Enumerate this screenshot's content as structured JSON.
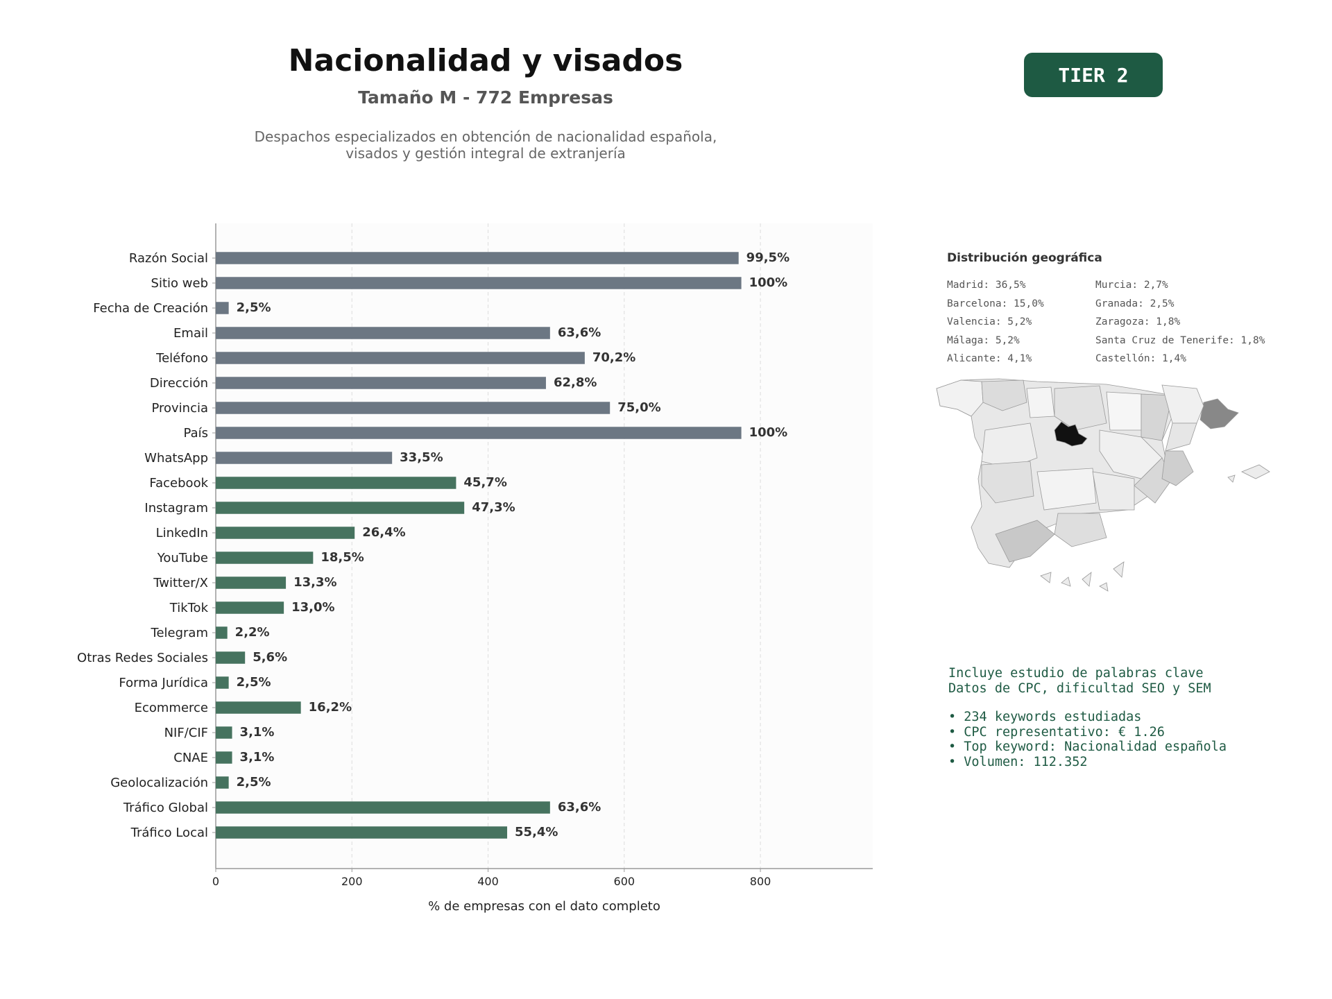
{
  "header": {
    "title": "Nacionalidad y visados",
    "subtitle": "Tamaño M - 772 Empresas",
    "description_line1": "Despachos especializados en obtención de nacionalidad española,",
    "description_line2": "visados y gestión integral de extranjería",
    "tier": "TIER 2"
  },
  "colors": {
    "gray_bar": "#6c7783",
    "green_bar": "#46735f",
    "tier_bg": "#1e5a43",
    "map_highlight": "#111111"
  },
  "chart_data": {
    "type": "bar",
    "orientation": "horizontal",
    "xlabel": "% de empresas con el dato completo",
    "xlim": [
      0,
      965
    ],
    "xticks": [
      0,
      200,
      400,
      600,
      800
    ],
    "grid": "vertical dashed",
    "categories": [
      "Razón Social",
      "Sitio web",
      "Fecha de Creación",
      "Email",
      "Teléfono",
      "Dirección",
      "Provincia",
      "País",
      "WhatsApp",
      "Facebook",
      "Instagram",
      "LinkedIn",
      "YouTube",
      "Twitter/X",
      "TikTok",
      "Telegram",
      "Otras Redes Sociales",
      "Forma Jurídica",
      "Ecommerce",
      "NIF/CIF",
      "CNAE",
      "Geolocalización",
      "Tráfico Global",
      "Tráfico Local"
    ],
    "values": [
      768,
      772,
      19,
      491,
      542,
      485,
      579,
      772,
      259,
      353,
      365,
      204,
      143,
      103,
      100,
      17,
      43,
      19,
      125,
      24,
      24,
      19,
      491,
      428
    ],
    "labels": [
      "99,5%",
      "100%",
      "2,5%",
      "63,6%",
      "70,2%",
      "62,8%",
      "75,0%",
      "100%",
      "33,5%",
      "45,7%",
      "47,3%",
      "26,4%",
      "18,5%",
      "13,3%",
      "13,0%",
      "2,2%",
      "5,6%",
      "2,5%",
      "16,2%",
      "3,1%",
      "3,1%",
      "2,5%",
      "63,6%",
      "55,4%"
    ],
    "groups": [
      "gray",
      "gray",
      "gray",
      "gray",
      "gray",
      "gray",
      "gray",
      "gray",
      "gray",
      "green",
      "green",
      "green",
      "green",
      "green",
      "green",
      "green",
      "green",
      "green",
      "green",
      "green",
      "green",
      "green",
      "green",
      "green"
    ]
  },
  "geo": {
    "title": "Distribución geográfica",
    "left": [
      "Madrid: 36,5%",
      "Barcelona: 15,0%",
      "Valencia: 5,2%",
      "Málaga: 5,2%",
      "Alicante: 4,1%"
    ],
    "right": [
      "Murcia: 2,7%",
      "Granada: 2,5%",
      "Zaragoza: 1,8%",
      "Santa Cruz de Tenerife: 1,8%",
      "Castellón: 1,4%"
    ]
  },
  "keywords": {
    "line1": "Incluye estudio de palabras clave",
    "line2": "Datos de CPC, dificultad SEO y SEM",
    "bullets": [
      "• 234 keywords estudiadas",
      "• CPC representativo: € 1.26",
      "• Top keyword: Nacionalidad española",
      "• Volumen: 112.352"
    ]
  }
}
